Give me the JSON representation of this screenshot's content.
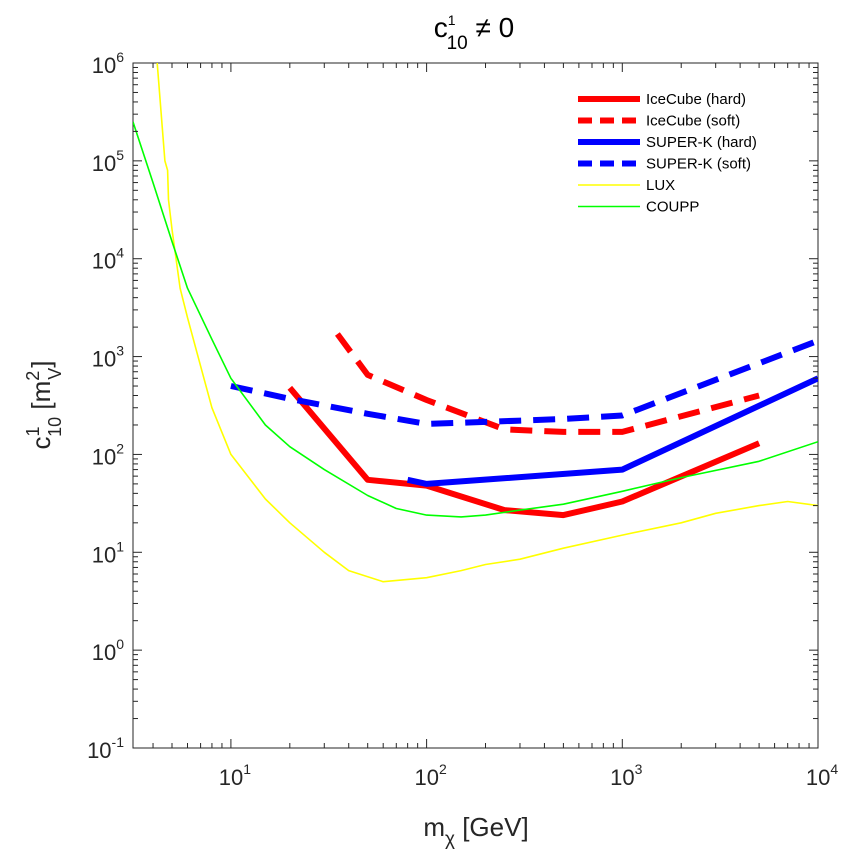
{
  "chart_data": {
    "type": "line",
    "title": {
      "base": "c",
      "sup": "1",
      "sub": "10",
      "rest": " ≠ 0"
    },
    "xlabel": {
      "base": "m",
      "sub": "χ",
      "rest": " [GeV]"
    },
    "ylabel": {
      "base": "c",
      "sup1": "1",
      "sub1": "10",
      "mid": " [m",
      "sup2": "2",
      "sub2": "V",
      "end": "]"
    },
    "xscale": "log",
    "yscale": "log",
    "xlim": [
      3.16,
      10000
    ],
    "ylim": [
      0.1,
      1000000
    ],
    "grid": false,
    "legend_position": "top-right",
    "x_ticks": [
      {
        "base": "10",
        "exp": "1",
        "value": 10
      },
      {
        "base": "10",
        "exp": "2",
        "value": 100
      },
      {
        "base": "10",
        "exp": "3",
        "value": 1000
      },
      {
        "base": "10",
        "exp": "4",
        "value": 10000
      }
    ],
    "y_ticks": [
      {
        "base": "10",
        "exp": "-1",
        "value": 0.1
      },
      {
        "base": "10",
        "exp": "0",
        "value": 1
      },
      {
        "base": "10",
        "exp": "1",
        "value": 10
      },
      {
        "base": "10",
        "exp": "2",
        "value": 100
      },
      {
        "base": "10",
        "exp": "3",
        "value": 1000
      },
      {
        "base": "10",
        "exp": "4",
        "value": 10000
      },
      {
        "base": "10",
        "exp": "5",
        "value": 100000
      },
      {
        "base": "10",
        "exp": "6",
        "value": 1000000
      }
    ],
    "series": [
      {
        "name": "IceCube (hard)",
        "color": "#ff0000",
        "dash": "solid",
        "weight": "thick",
        "x": [
          20,
          50,
          100,
          250,
          500,
          1000,
          5000
        ],
        "y": [
          480,
          55,
          48,
          27,
          24,
          33,
          130
        ]
      },
      {
        "name": "IceCube (soft)",
        "color": "#ff0000",
        "dash": "dashed",
        "weight": "thick",
        "x": [
          35,
          50,
          100,
          250,
          500,
          1000,
          5000
        ],
        "y": [
          1700,
          650,
          360,
          180,
          170,
          170,
          400
        ]
      },
      {
        "name": "SUPER-K (hard)",
        "color": "#0000ff",
        "dash": "solid",
        "weight": "thick",
        "x": [
          80,
          100,
          1000,
          10000
        ],
        "y": [
          55,
          50,
          70,
          600
        ]
      },
      {
        "name": "SUPER-K (soft)",
        "color": "#0000ff",
        "dash": "dashed",
        "weight": "thick",
        "x": [
          10,
          20,
          50,
          100,
          200,
          500,
          1000,
          10000
        ],
        "y": [
          500,
          370,
          260,
          205,
          215,
          230,
          250,
          1450
        ]
      },
      {
        "name": "LUX",
        "color": "#ffff00",
        "dash": "solid",
        "weight": "thin",
        "x": [
          4.2,
          4.6,
          4.75,
          4.8,
          5,
          5.5,
          6,
          7,
          8,
          10,
          15,
          20,
          30,
          40,
          60,
          100,
          150,
          200,
          300,
          500,
          1000,
          2000,
          3000,
          5000,
          7000,
          10000
        ],
        "y": [
          1000000,
          100000,
          80000,
          40000,
          20000,
          5000,
          2500,
          800,
          300,
          100,
          35,
          20,
          10,
          6.5,
          5,
          5.5,
          6.5,
          7.5,
          8.5,
          11,
          15,
          20,
          25,
          30,
          33,
          30
        ]
      },
      {
        "name": "COUPP",
        "color": "#00ff00",
        "dash": "solid",
        "weight": "thin",
        "x": [
          3.16,
          4,
          5,
          6,
          8,
          10,
          15,
          20,
          30,
          50,
          70,
          100,
          150,
          200,
          300,
          500,
          1000,
          2000,
          5000,
          10000
        ],
        "y": [
          250000,
          60000,
          15000,
          5000,
          1500,
          600,
          200,
          120,
          70,
          38,
          28,
          24,
          23,
          24,
          27,
          31,
          42,
          58,
          85,
          135
        ]
      }
    ]
  }
}
